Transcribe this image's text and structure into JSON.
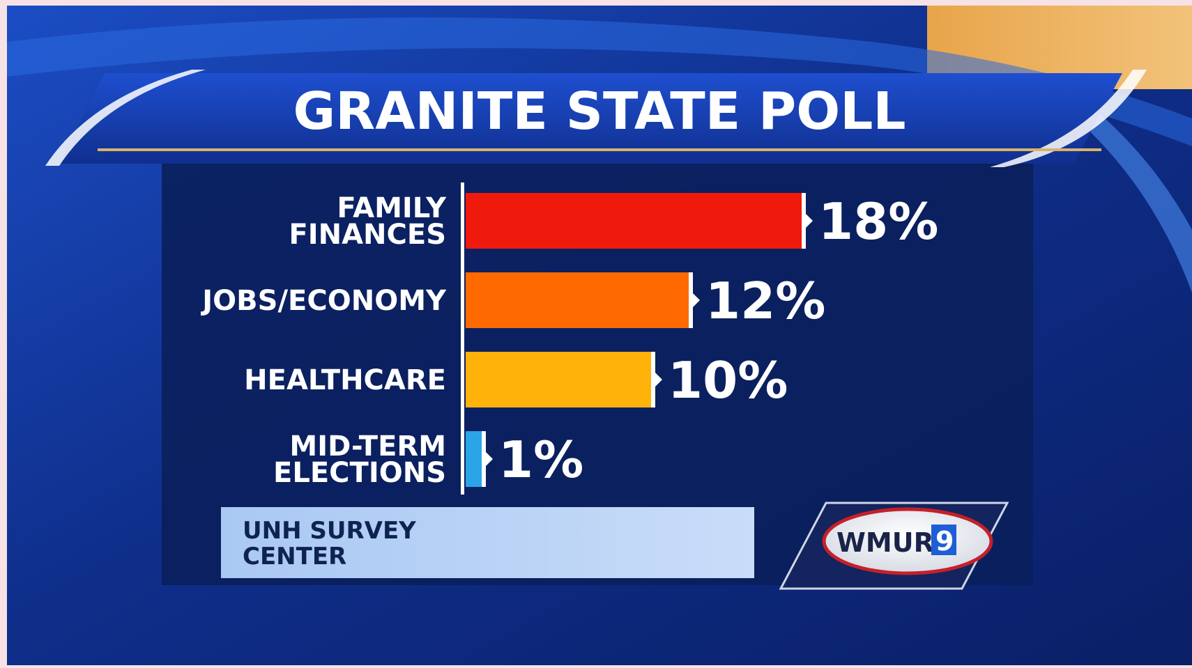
{
  "chart_data": {
    "type": "bar",
    "orientation": "horizontal",
    "title": "GRANITE STATE POLL",
    "categories": [
      [
        "FAMILY",
        "FINANCES"
      ],
      [
        "JOBS/ECONOMY"
      ],
      [
        "HEALTHCARE"
      ],
      [
        "MID-TERM",
        "ELECTIONS"
      ]
    ],
    "values": [
      18,
      12,
      10,
      1
    ],
    "value_labels": [
      "18%",
      "12%",
      "10%",
      "1%"
    ],
    "colors": [
      "#f01a0c",
      "#ff6a00",
      "#ffb20a",
      "#2aa6e8"
    ],
    "source": [
      "UNH SURVEY",
      "CENTER"
    ],
    "grid": false,
    "legend": "none"
  },
  "logo": {
    "text": "WMUR",
    "number": "9"
  },
  "colors": {
    "background": "#0f2a78",
    "panel": "#0b1f5c",
    "source_box": "#a9c8f3"
  }
}
